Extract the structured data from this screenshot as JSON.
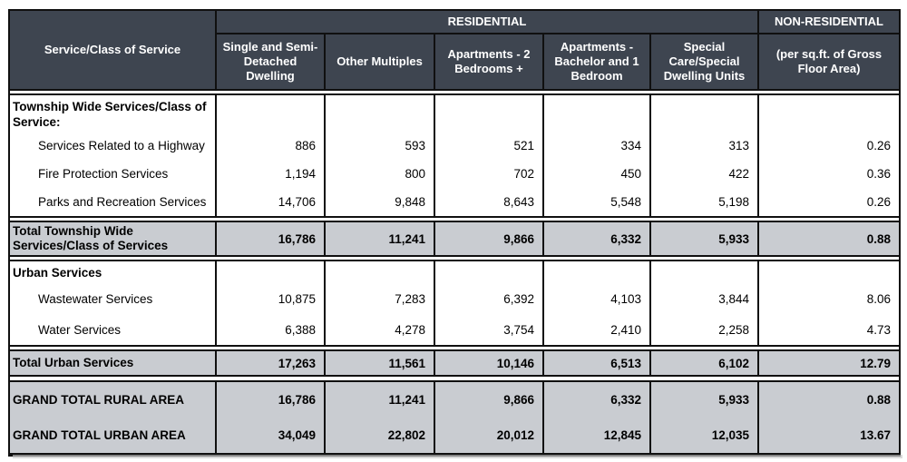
{
  "table": {
    "header": {
      "service_class_label": "Service/Class of Service",
      "residential_label": "RESIDENTIAL",
      "non_residential_label": "NON-RESIDENTIAL",
      "columns": [
        "Single and Semi-Detached Dwelling",
        "Other Multiples",
        "Apartments - 2 Bedrooms +",
        "Apartments - Bachelor and 1 Bedroom",
        "Special Care/Special Dwelling Units",
        "(per sq.ft. of Gross Floor Area)"
      ]
    },
    "sections": [
      {
        "label": "Township Wide Services/Class of Service:",
        "rows": [
          {
            "label": "Services Related to a Highway",
            "values": [
              "886",
              "593",
              "521",
              "334",
              "313",
              "0.26"
            ]
          },
          {
            "label": "Fire Protection Services",
            "values": [
              "1,194",
              "800",
              "702",
              "450",
              "422",
              "0.36"
            ]
          },
          {
            "label": "Parks and Recreation Services",
            "values": [
              "14,706",
              "9,848",
              "8,643",
              "5,548",
              "5,198",
              "0.26"
            ]
          }
        ]
      },
      {
        "label": "Total Township Wide Services/Class of Services",
        "values": [
          "16,786",
          "11,241",
          "9,866",
          "6,332",
          "5,933",
          "0.88"
        ]
      },
      {
        "label": "Urban Services",
        "rows": [
          {
            "label": "Wastewater Services",
            "values": [
              "10,875",
              "7,283",
              "6,392",
              "4,103",
              "3,844",
              "8.06"
            ]
          },
          {
            "label": "Water Services",
            "values": [
              "6,388",
              "4,278",
              "3,754",
              "2,410",
              "2,258",
              "4.73"
            ]
          }
        ]
      },
      {
        "label": "Total Urban Services",
        "values": [
          "17,263",
          "11,561",
          "10,146",
          "6,513",
          "6,102",
          "12.79"
        ]
      },
      {
        "rows": [
          {
            "label": "GRAND TOTAL RURAL AREA",
            "values": [
              "16,786",
              "11,241",
              "9,866",
              "6,332",
              "5,933",
              "0.88"
            ]
          },
          {
            "label": "GRAND TOTAL URBAN AREA",
            "values": [
              "34,049",
              "22,802",
              "20,012",
              "12,845",
              "12,035",
              "13.67"
            ]
          }
        ]
      }
    ]
  }
}
